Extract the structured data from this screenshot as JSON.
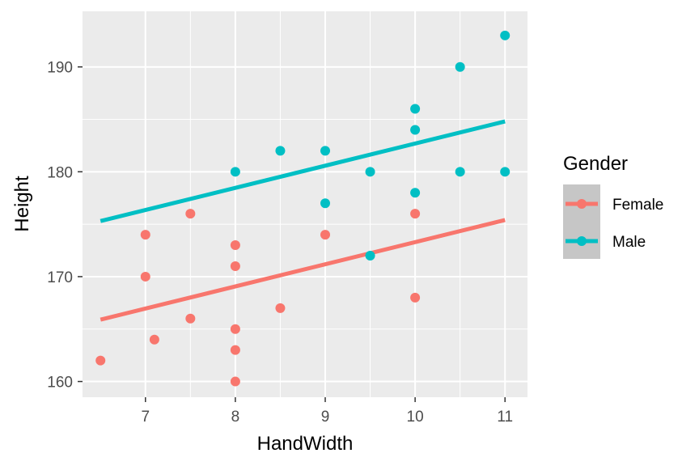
{
  "chart_data": {
    "type": "scatter",
    "title": "",
    "xlabel": "HandWidth",
    "ylabel": "Height",
    "xlim": [
      6.3,
      11.25
    ],
    "ylim": [
      158.5,
      195.3
    ],
    "xticks": [
      7,
      8,
      9,
      10,
      11
    ],
    "yticks": [
      160,
      170,
      180,
      190
    ],
    "grid": true,
    "legend": {
      "title": "Gender",
      "position": "right"
    },
    "series": [
      {
        "name": "Female",
        "color": "#f8766d",
        "points": [
          {
            "x": 6.5,
            "y": 162
          },
          {
            "x": 7,
            "y": 174
          },
          {
            "x": 7,
            "y": 170
          },
          {
            "x": 7.1,
            "y": 164
          },
          {
            "x": 7.5,
            "y": 176
          },
          {
            "x": 7.5,
            "y": 166
          },
          {
            "x": 8,
            "y": 173
          },
          {
            "x": 8,
            "y": 171
          },
          {
            "x": 8,
            "y": 165
          },
          {
            "x": 8,
            "y": 163
          },
          {
            "x": 8,
            "y": 160
          },
          {
            "x": 8.5,
            "y": 167
          },
          {
            "x": 9,
            "y": 174
          },
          {
            "x": 10,
            "y": 176
          },
          {
            "x": 10,
            "y": 168
          }
        ],
        "fit": {
          "x": [
            6.5,
            11
          ],
          "y": [
            165.9,
            175.4
          ]
        }
      },
      {
        "name": "Male",
        "color": "#00bfc4",
        "points": [
          {
            "x": 8,
            "y": 180
          },
          {
            "x": 8.5,
            "y": 182
          },
          {
            "x": 9,
            "y": 182
          },
          {
            "x": 9,
            "y": 177
          },
          {
            "x": 9.5,
            "y": 180
          },
          {
            "x": 9.5,
            "y": 172
          },
          {
            "x": 10,
            "y": 186
          },
          {
            "x": 10,
            "y": 184
          },
          {
            "x": 10,
            "y": 178
          },
          {
            "x": 10.5,
            "y": 190
          },
          {
            "x": 10.5,
            "y": 180
          },
          {
            "x": 11,
            "y": 193
          },
          {
            "x": 11,
            "y": 180
          }
        ],
        "fit": {
          "x": [
            6.5,
            11
          ],
          "y": [
            175.3,
            184.8
          ]
        }
      }
    ]
  }
}
